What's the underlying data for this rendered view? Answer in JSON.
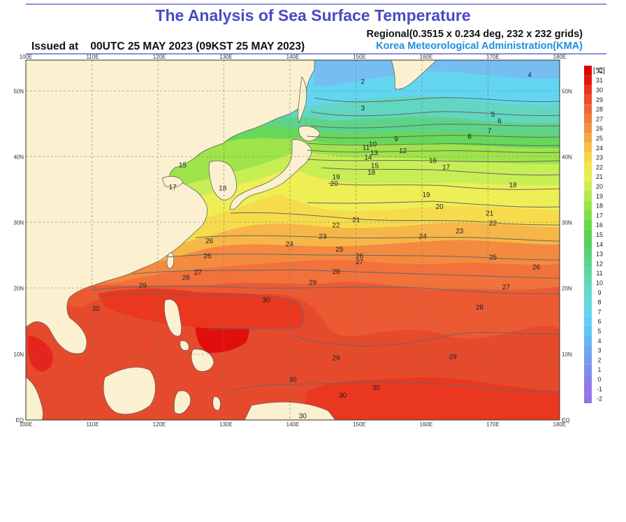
{
  "header": {
    "title": "The Analysis of Sea Surface Temperature",
    "issued": "Issued at    00UTC 25 MAY 2023 (09KST 25 MAY 2023)",
    "regional": "Regional(0.3515 x 0.234 deg, 232 x 232 grids)",
    "agency": "Korea Meteorological Administration(KMA)"
  },
  "colors": {
    "title": "#4a4ac4",
    "agency": "#1e8fe0",
    "land": "#fbf0cf",
    "rule": "#6a6ad0"
  },
  "map": {
    "lon_labels": [
      "100E",
      "110E",
      "120E",
      "130E",
      "140E",
      "150E",
      "160E",
      "170E",
      "180E"
    ],
    "lat_labels_left": [
      "EQ",
      "10N",
      "20N",
      "30N",
      "40N",
      "50N"
    ],
    "lat_labels_right": [
      "EQ",
      "10N",
      "20N",
      "30N",
      "40N",
      "50N"
    ]
  },
  "colorbar": {
    "unit": "[℃]",
    "values": [
      "32",
      "31",
      "30",
      "29",
      "28",
      "27",
      "26",
      "25",
      "24",
      "23",
      "22",
      "21",
      "20",
      "19",
      "18",
      "17",
      "16",
      "15",
      "14",
      "13",
      "12",
      "11",
      "10",
      "9",
      "8",
      "7",
      "6",
      "5",
      "4",
      "3",
      "2",
      "1",
      "0",
      "-1",
      "-2"
    ]
  },
  "contour_labels": [
    {
      "text": "2",
      "lon": 150.5,
      "lat": 51.5
    },
    {
      "text": "4",
      "lon": 175.5,
      "lat": 52.5
    },
    {
      "text": "3",
      "lon": 150.5,
      "lat": 47.5
    },
    {
      "text": "5",
      "lon": 170.0,
      "lat": 46.5
    },
    {
      "text": "6",
      "lon": 171.0,
      "lat": 45.5
    },
    {
      "text": "7",
      "lon": 169.5,
      "lat": 44.0
    },
    {
      "text": "8",
      "lon": 166.5,
      "lat": 43.2
    },
    {
      "text": "9",
      "lon": 155.5,
      "lat": 42.8
    },
    {
      "text": "10",
      "lon": 152.0,
      "lat": 42.0
    },
    {
      "text": "11",
      "lon": 151.0,
      "lat": 41.5
    },
    {
      "text": "12",
      "lon": 156.5,
      "lat": 41.0
    },
    {
      "text": "13",
      "lon": 152.2,
      "lat": 40.7
    },
    {
      "text": "14",
      "lon": 151.3,
      "lat": 40.0
    },
    {
      "text": "15",
      "lon": 152.3,
      "lat": 38.7
    },
    {
      "text": "16",
      "lon": 161.0,
      "lat": 39.5
    },
    {
      "text": "17",
      "lon": 163.0,
      "lat": 38.5
    },
    {
      "text": "18",
      "lon": 151.8,
      "lat": 37.7
    },
    {
      "text": "19",
      "lon": 146.5,
      "lat": 37.0
    },
    {
      "text": "20",
      "lon": 146.2,
      "lat": 36.0
    },
    {
      "text": "19",
      "lon": 160.0,
      "lat": 34.3
    },
    {
      "text": "20",
      "lon": 162.0,
      "lat": 32.5
    },
    {
      "text": "18",
      "lon": 173.0,
      "lat": 35.8
    },
    {
      "text": "21",
      "lon": 169.5,
      "lat": 31.5
    },
    {
      "text": "22",
      "lon": 170.0,
      "lat": 30.0
    },
    {
      "text": "21",
      "lon": 149.5,
      "lat": 30.5
    },
    {
      "text": "22",
      "lon": 146.5,
      "lat": 29.7
    },
    {
      "text": "23",
      "lon": 144.5,
      "lat": 28.0
    },
    {
      "text": "23",
      "lon": 165.0,
      "lat": 28.8
    },
    {
      "text": "24",
      "lon": 159.5,
      "lat": 28.0
    },
    {
      "text": "24",
      "lon": 139.5,
      "lat": 26.8
    },
    {
      "text": "25",
      "lon": 147.0,
      "lat": 26.0
    },
    {
      "text": "25",
      "lon": 170.0,
      "lat": 24.8
    },
    {
      "text": "26",
      "lon": 150.0,
      "lat": 25.0
    },
    {
      "text": "27",
      "lon": 150.0,
      "lat": 24.1
    },
    {
      "text": "26",
      "lon": 176.5,
      "lat": 23.3
    },
    {
      "text": "28",
      "lon": 146.5,
      "lat": 22.6
    },
    {
      "text": "27",
      "lon": 172.0,
      "lat": 20.3
    },
    {
      "text": "28",
      "lon": 168.0,
      "lat": 17.2
    },
    {
      "text": "29",
      "lon": 143.0,
      "lat": 21.0
    },
    {
      "text": "29",
      "lon": 117.5,
      "lat": 20.5
    },
    {
      "text": "27",
      "lon": 125.8,
      "lat": 22.5
    },
    {
      "text": "28",
      "lon": 124.0,
      "lat": 21.7
    },
    {
      "text": "26",
      "lon": 127.2,
      "lat": 25.0
    },
    {
      "text": "26",
      "lon": 127.5,
      "lat": 27.3
    },
    {
      "text": "30",
      "lon": 136.0,
      "lat": 18.3
    },
    {
      "text": "30",
      "lon": 110.5,
      "lat": 17.0
    },
    {
      "text": "29",
      "lon": 146.5,
      "lat": 9.5
    },
    {
      "text": "29",
      "lon": 164.0,
      "lat": 9.7
    },
    {
      "text": "30",
      "lon": 140.0,
      "lat": 6.2
    },
    {
      "text": "30",
      "lon": 147.5,
      "lat": 3.8
    },
    {
      "text": "30",
      "lon": 152.5,
      "lat": 5.0
    },
    {
      "text": "30",
      "lon": 141.5,
      "lat": 0.7
    },
    {
      "text": "15",
      "lon": 123.5,
      "lat": 38.8
    },
    {
      "text": "17",
      "lon": 122.0,
      "lat": 35.5
    },
    {
      "text": "18",
      "lon": 129.5,
      "lat": 35.3
    }
  ]
}
